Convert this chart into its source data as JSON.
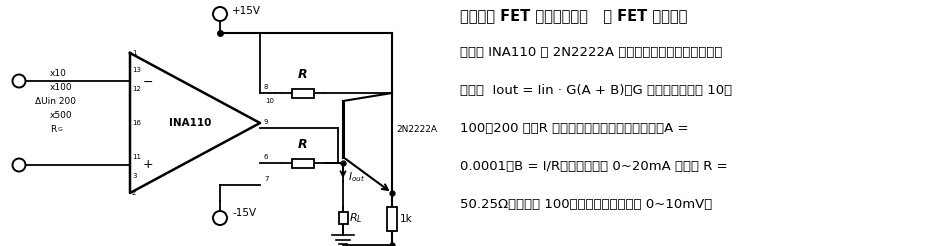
{
  "bg_color": "#ffffff",
  "text_color": "#000000",
  "title_line": "差动输入 FET 缓冲的电流源   由 FET 输入仪器",
  "body_lines": [
    "放大器 INA110 和 2N2222A 三极管组成的电流源电路，输",
    "出电流  Iout = Iin · G(A + B)，G 为增益，可选择 10、",
    "100、200 等，R 为外接电阻，用于设定电流值。A =",
    "0.0001，B = I/R。在电流范围 0~20mA 时，取 R =",
    "50.25Ω，增益取 100，输入电压的变化为 0~10mV。"
  ]
}
